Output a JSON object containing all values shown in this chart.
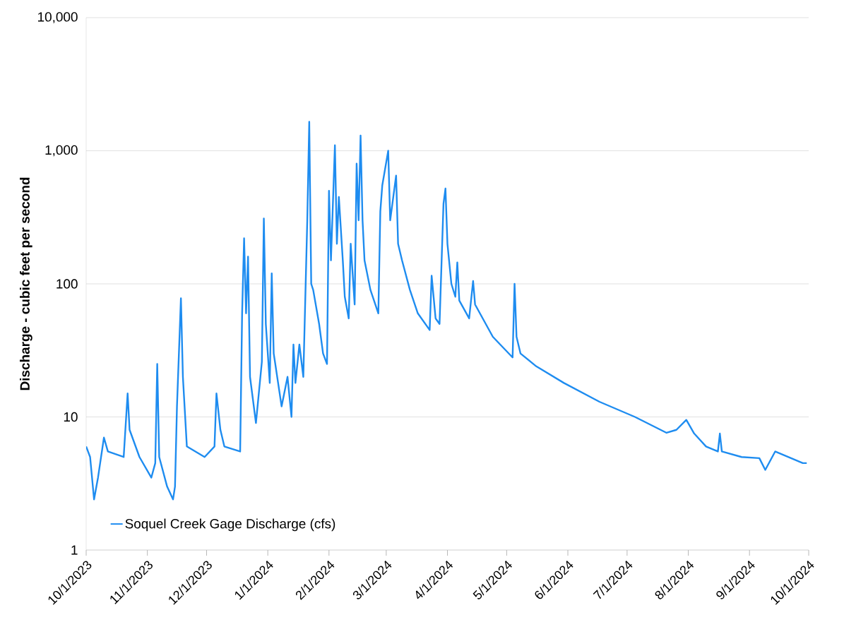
{
  "chart_data": {
    "type": "line",
    "ylabel": "Discharge - cubic feet per second",
    "x": [
      "2023-10-01",
      "2023-10-03",
      "2023-10-05",
      "2023-10-07",
      "2023-10-10",
      "2023-10-12",
      "2023-10-20",
      "2023-10-22",
      "2023-10-23",
      "2023-10-28",
      "2023-11-03",
      "2023-11-05",
      "2023-11-06",
      "2023-11-07",
      "2023-11-11",
      "2023-11-14",
      "2023-11-15",
      "2023-11-16",
      "2023-11-18",
      "2023-11-19",
      "2023-11-21",
      "2023-11-30",
      "2023-12-05",
      "2023-12-06",
      "2023-12-08",
      "2023-12-10",
      "2023-12-18",
      "2023-12-19",
      "2023-12-20",
      "2023-12-21",
      "2023-12-22",
      "2023-12-23",
      "2023-12-26",
      "2023-12-29",
      "2023-12-30",
      "2023-12-31",
      "2024-01-02",
      "2024-01-03",
      "2024-01-04",
      "2024-01-08",
      "2024-01-11",
      "2024-01-13",
      "2024-01-14",
      "2024-01-15",
      "2024-01-17",
      "2024-01-19",
      "2024-01-21",
      "2024-01-22",
      "2024-01-23",
      "2024-01-24",
      "2024-01-27",
      "2024-01-29",
      "2024-01-31",
      "2024-02-01",
      "2024-02-02",
      "2024-02-04",
      "2024-02-05",
      "2024-02-06",
      "2024-02-08",
      "2024-02-09",
      "2024-02-11",
      "2024-02-12",
      "2024-02-14",
      "2024-02-15",
      "2024-02-16",
      "2024-02-17",
      "2024-02-18",
      "2024-02-19",
      "2024-02-22",
      "2024-02-26",
      "2024-02-27",
      "2024-02-28",
      "2024-03-02",
      "2024-03-03",
      "2024-03-06",
      "2024-03-07",
      "2024-03-09",
      "2024-03-13",
      "2024-03-17",
      "2024-03-23",
      "2024-03-24",
      "2024-03-26",
      "2024-03-28",
      "2024-03-30",
      "2024-03-31",
      "2024-04-01",
      "2024-04-03",
      "2024-04-05",
      "2024-04-06",
      "2024-04-07",
      "2024-04-12",
      "2024-04-14",
      "2024-04-15",
      "2024-04-24",
      "2024-05-04",
      "2024-05-05",
      "2024-05-06",
      "2024-05-08",
      "2024-05-16",
      "2024-05-30",
      "2024-06-17",
      "2024-07-05",
      "2024-07-21",
      "2024-07-26",
      "2024-07-31",
      "2024-08-04",
      "2024-08-10",
      "2024-08-16",
      "2024-08-17",
      "2024-08-18",
      "2024-08-28",
      "2024-09-06",
      "2024-09-09",
      "2024-09-14",
      "2024-09-28",
      "2024-09-30"
    ],
    "series": [
      {
        "name": "Soquel Creek Gage Discharge (cfs)",
        "color": "#1e8cf0",
        "values": [
          6,
          5,
          2.4,
          3.5,
          7,
          5.5,
          5,
          15,
          8,
          5,
          3.5,
          4.5,
          25,
          5,
          3,
          2.4,
          3,
          12,
          78,
          20,
          6,
          5,
          6,
          15,
          8,
          6,
          5.5,
          60,
          220,
          60,
          160,
          20,
          9,
          26,
          310,
          50,
          18,
          120,
          30,
          12,
          20,
          10,
          35,
          18,
          35,
          20,
          300,
          1650,
          100,
          90,
          50,
          30,
          25,
          500,
          150,
          1100,
          200,
          450,
          150,
          80,
          55,
          200,
          70,
          800,
          300,
          1300,
          300,
          150,
          90,
          60,
          350,
          550,
          1000,
          300,
          650,
          200,
          150,
          90,
          60,
          45,
          115,
          55,
          50,
          400,
          520,
          200,
          100,
          80,
          145,
          75,
          55,
          105,
          70,
          40,
          28,
          100,
          40,
          30,
          24,
          18,
          13,
          10,
          7.6,
          8,
          9.5,
          7.5,
          6,
          5.5,
          7.5,
          5.5,
          5,
          4.9,
          4,
          5.5,
          4.5,
          4.5
        ]
      }
    ],
    "log": "y",
    "xlim": [
      "2023-10-01",
      "2024-10-01"
    ],
    "xticks": [
      {
        "value": "2023-10-01",
        "label": "10/1/2023"
      },
      {
        "value": "2023-11-01",
        "label": "11/1/2023"
      },
      {
        "value": "2023-12-01",
        "label": "12/1/2023"
      },
      {
        "value": "2024-01-01",
        "label": "1/1/2024"
      },
      {
        "value": "2024-02-01",
        "label": "2/1/2024"
      },
      {
        "value": "2024-03-01",
        "label": "3/1/2024"
      },
      {
        "value": "2024-04-01",
        "label": "4/1/2024"
      },
      {
        "value": "2024-05-01",
        "label": "5/1/2024"
      },
      {
        "value": "2024-06-01",
        "label": "6/1/2024"
      },
      {
        "value": "2024-07-01",
        "label": "7/1/2024"
      },
      {
        "value": "2024-08-01",
        "label": "8/1/2024"
      },
      {
        "value": "2024-09-01",
        "label": "9/1/2024"
      },
      {
        "value": "2024-10-01",
        "label": "10/1/2024"
      }
    ],
    "ylim": [
      1,
      10000
    ],
    "yticks": [
      1,
      10,
      100,
      {
        "value": 1000,
        "label": "1,000"
      },
      {
        "value": 10000,
        "label": "10,000"
      }
    ],
    "grid": "y",
    "legend": "bottom left",
    "marker": "none",
    "line_style": "solid"
  }
}
